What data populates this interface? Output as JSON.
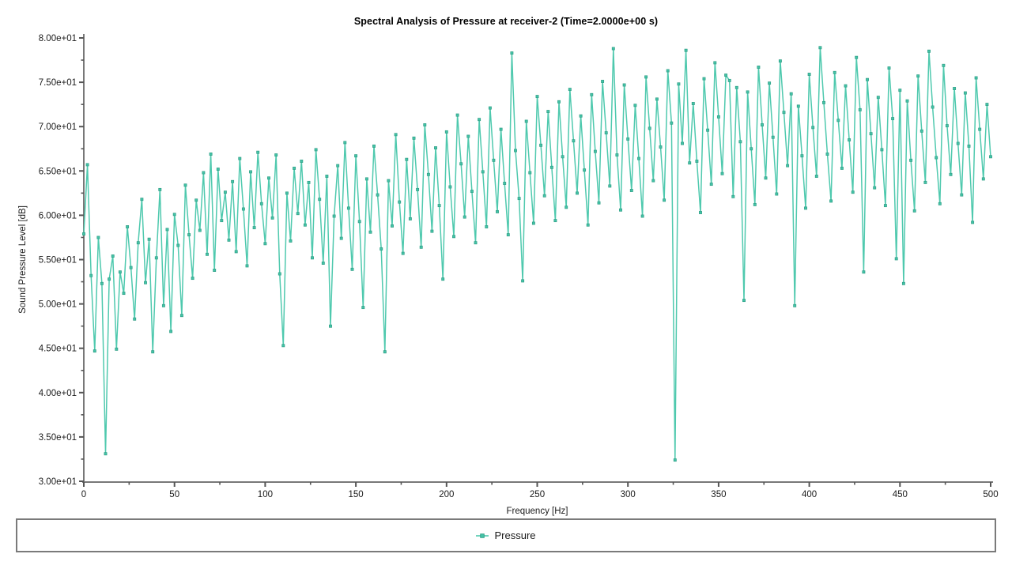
{
  "title": "Spectral Analysis of Pressure at receiver-2 (Time=2.0000e+00 s)",
  "legend": {
    "items": [
      {
        "label": "Pressure",
        "color": "#4fc9ae"
      }
    ]
  },
  "style": {
    "line_color": "#4fc9ae",
    "marker_fill": "#45c3a8",
    "marker_edge": "#2f9f85",
    "axis_line_color": "#787878",
    "tick_color": "#555555",
    "tick_label_color": "#1a1a1a",
    "axis_title_color": "#1a1a1a",
    "title_color": "#000000",
    "legend_border_color": "#7a7a7a",
    "background": "#ffffff"
  },
  "chart_data": {
    "type": "line",
    "title": "Spectral Analysis of Pressure at receiver-2 (Time=2.0000e+00 s)",
    "xlabel": "Frequency [Hz]",
    "ylabel": "Sound Pressure Level [dB]",
    "xlim": [
      0,
      500
    ],
    "ylim": [
      30,
      80
    ],
    "grid": false,
    "legend_position": "bottom",
    "x_ticks": {
      "values": [
        0,
        50,
        100,
        150,
        200,
        250,
        300,
        350,
        400,
        450,
        500
      ],
      "labels": [
        "0",
        "50",
        "100",
        "150",
        "200",
        "250",
        "300",
        "350",
        "400",
        "450",
        "500"
      ],
      "minor_step": 25
    },
    "y_ticks": {
      "values": [
        80,
        75,
        70,
        65,
        60,
        55,
        50,
        45,
        40,
        35,
        30
      ],
      "labels": [
        "8.00e+01",
        "7.50e+01",
        "7.00e+01",
        "6.50e+01",
        "6.00e+01",
        "5.50e+01",
        "5.00e+01",
        "4.50e+01",
        "4.00e+01",
        "3.50e+01",
        "3.00e+01"
      ],
      "minor_step": 2.5
    },
    "series": [
      {
        "name": "Pressure",
        "marker": "square",
        "x_start": 0,
        "x_step": 2,
        "values": [
          57.9,
          65.7,
          53.2,
          44.7,
          57.5,
          52.3,
          33.1,
          52.8,
          55.4,
          44.9,
          53.6,
          51.2,
          58.7,
          54.1,
          48.3,
          56.9,
          61.8,
          52.4,
          57.3,
          44.6,
          55.2,
          62.9,
          49.8,
          58.4,
          46.9,
          60.1,
          56.6,
          48.7,
          63.4,
          57.8,
          52.9,
          61.7,
          58.3,
          64.8,
          55.6,
          66.9,
          53.8,
          65.2,
          59.4,
          62.6,
          57.2,
          63.8,
          55.9,
          66.4,
          60.7,
          54.3,
          64.9,
          58.6,
          67.1,
          61.3,
          56.8,
          64.2,
          59.7,
          66.8,
          53.4,
          45.3,
          62.5,
          57.1,
          65.3,
          60.2,
          66.1,
          58.9,
          63.7,
          55.2,
          67.4,
          61.8,
          54.6,
          64.4,
          47.5,
          59.9,
          65.6,
          57.4,
          68.2,
          60.8,
          53.9,
          66.7,
          59.3,
          49.6,
          64.1,
          58.1,
          67.8,
          62.3,
          56.2,
          44.6,
          63.9,
          58.8,
          69.1,
          61.5,
          55.7,
          66.3,
          59.6,
          68.7,
          62.9,
          56.4,
          70.2,
          64.6,
          58.2,
          67.6,
          61.1,
          52.8,
          69.4,
          63.2,
          57.6,
          71.3,
          65.8,
          59.8,
          68.9,
          62.7,
          56.9,
          70.8,
          64.9,
          58.7,
          72.1,
          66.2,
          60.4,
          69.7,
          63.6,
          57.8,
          78.3,
          67.3,
          61.9,
          52.6,
          70.6,
          64.8,
          59.1,
          73.4,
          67.9,
          62.2,
          71.7,
          65.4,
          59.4,
          72.8,
          66.6,
          60.9,
          74.2,
          68.4,
          62.5,
          71.2,
          65.1,
          58.9,
          73.6,
          67.2,
          61.4,
          75.1,
          69.3,
          63.3,
          78.8,
          66.8,
          60.6,
          74.7,
          68.6,
          62.8,
          72.4,
          66.4,
          59.9,
          75.6,
          69.8,
          63.9,
          73.1,
          67.7,
          61.7,
          76.3,
          70.4,
          32.4,
          74.8,
          68.1,
          78.6,
          65.9,
          72.6,
          66.1,
          60.3,
          75.4,
          69.6,
          63.5,
          77.2,
          71.1,
          64.7,
          75.8,
          75.2,
          62.1,
          74.4,
          68.3,
          50.4,
          73.9,
          67.5,
          61.2,
          76.7,
          70.2,
          64.2,
          74.9,
          68.8,
          62.4,
          77.4,
          71.6,
          65.6,
          73.7,
          49.8,
          72.3,
          66.7,
          60.8,
          75.9,
          69.9,
          64.4,
          78.9,
          72.7,
          66.9,
          61.6,
          76.1,
          70.7,
          65.3,
          74.6,
          68.5,
          62.6,
          77.8,
          71.9,
          53.6,
          75.3,
          69.2,
          63.1,
          73.3,
          67.4,
          61.1,
          76.6,
          70.9,
          55.1,
          74.1,
          52.3,
          72.9,
          66.2,
          60.5,
          75.7,
          69.5,
          63.7,
          78.5,
          72.2,
          66.5,
          61.3,
          76.9,
          70.1,
          64.6,
          74.3,
          68.1,
          62.3,
          73.8,
          67.8,
          59.2,
          75.5,
          69.7,
          64.1,
          72.5,
          66.6
        ]
      }
    ]
  }
}
